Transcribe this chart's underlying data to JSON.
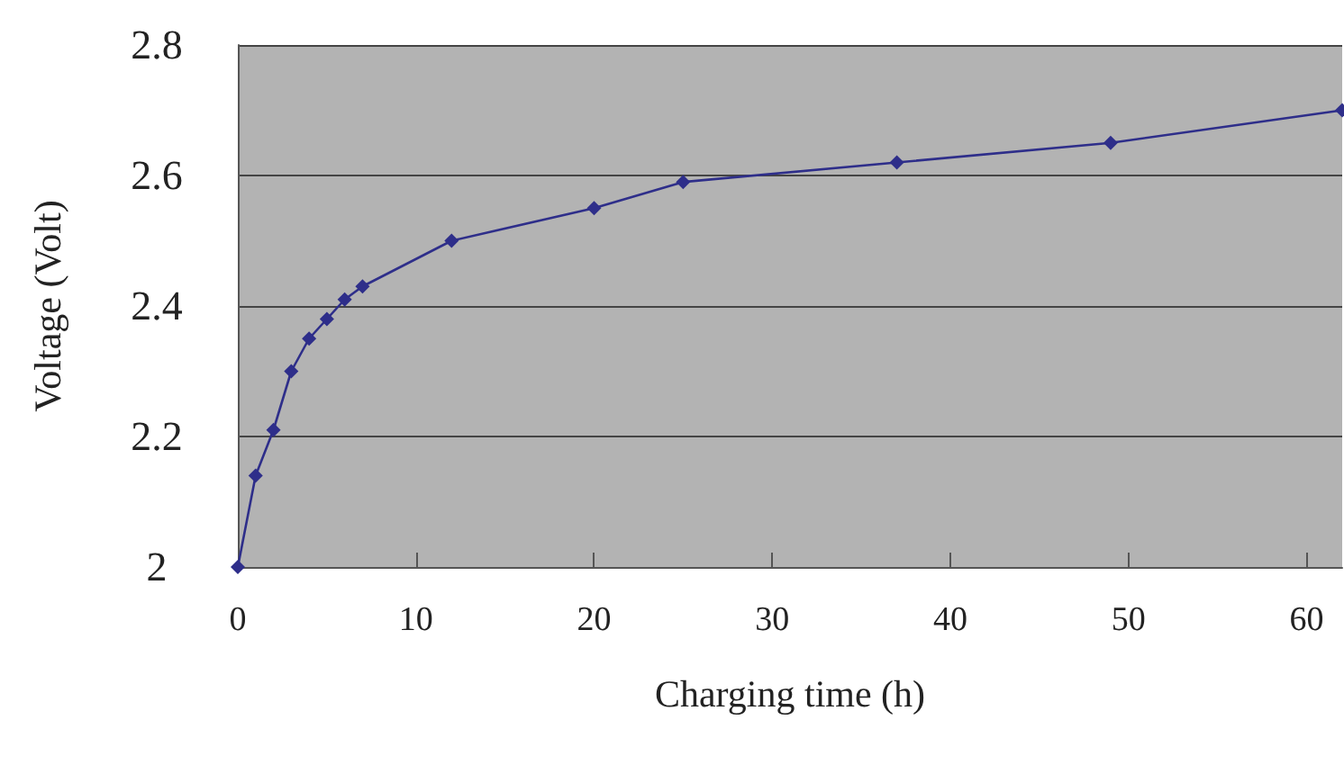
{
  "chart_data": {
    "type": "line",
    "xlabel": "Charging time (h)",
    "ylabel": "Voltage (Volt)",
    "x": [
      0,
      1,
      2,
      3,
      4,
      5,
      6,
      7,
      12,
      20,
      25,
      37,
      49,
      62
    ],
    "series": [
      {
        "color": "#2e2e8a",
        "values": [
          2.0,
          2.14,
          2.21,
          2.3,
          2.35,
          2.38,
          2.41,
          2.43,
          2.5,
          2.55,
          2.59,
          2.62,
          2.65,
          2.7
        ]
      }
    ],
    "xlim": [
      0,
      62
    ],
    "xticks": [
      0,
      10,
      20,
      30,
      40,
      50,
      60
    ],
    "ylim": [
      2,
      2.8
    ],
    "yticks": [
      2,
      2.2,
      2.4,
      2.6,
      2.8
    ],
    "grid": "y",
    "marker": "diamond",
    "line_style": "solid"
  }
}
